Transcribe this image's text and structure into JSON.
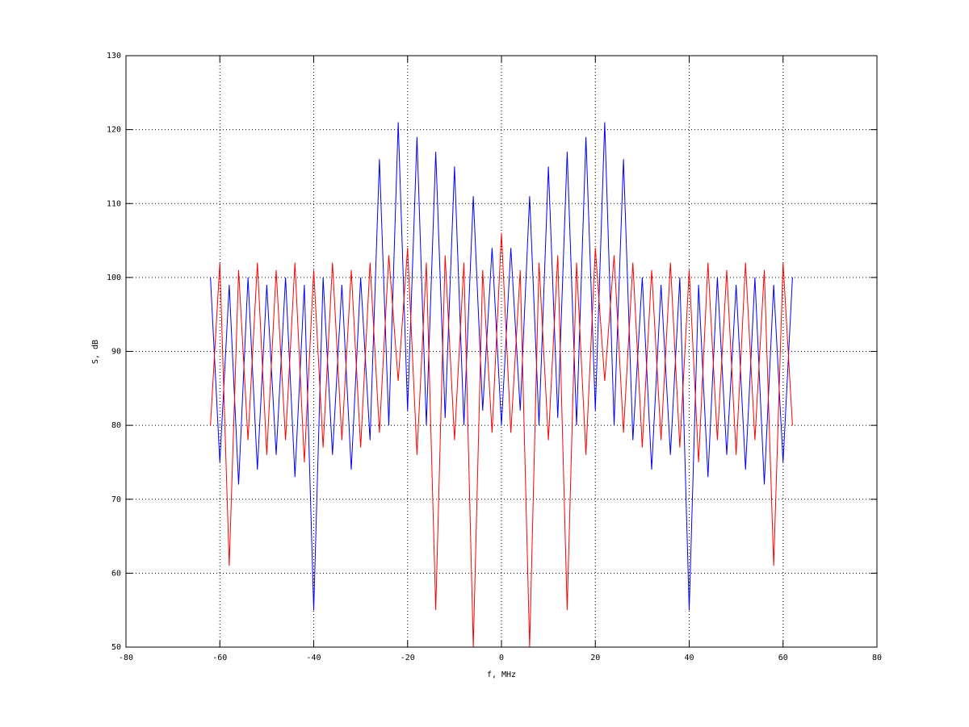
{
  "chart_data": {
    "type": "line",
    "xlabel": "f, MHz",
    "ylabel": "S, dB",
    "xlim": [
      -80,
      80
    ],
    "xticks": [
      -80,
      -60,
      -40,
      -20,
      0,
      20,
      40,
      60,
      80
    ],
    "ylim": [
      50,
      130
    ],
    "yticks": [
      50,
      60,
      70,
      80,
      90,
      100,
      110,
      120,
      130
    ],
    "grid": true,
    "x": [
      -62,
      -60,
      -58,
      -56,
      -54,
      -52,
      -50,
      -48,
      -46,
      -44,
      -42,
      -40,
      -38,
      -36,
      -34,
      -32,
      -30,
      -28,
      -26,
      -24,
      -22,
      -20,
      -18,
      -16,
      -14,
      -12,
      -10,
      -8,
      -6,
      -4,
      -2,
      0,
      2,
      4,
      6,
      8,
      10,
      12,
      14,
      16,
      18,
      20,
      22,
      24,
      26,
      28,
      30,
      32,
      34,
      36,
      38,
      40,
      42,
      44,
      46,
      48,
      50,
      52,
      54,
      56,
      58,
      60,
      62
    ],
    "series": [
      {
        "color": "#0000ff",
        "values": [
          100,
          75,
          99,
          72,
          100,
          74,
          99,
          76,
          100,
          73,
          99,
          55,
          100,
          76,
          99,
          74,
          100,
          78,
          116,
          80,
          121,
          82,
          119,
          80,
          117,
          81,
          115,
          80,
          111,
          82,
          104,
          80,
          104,
          82,
          111,
          80,
          115,
          81,
          117,
          80,
          119,
          82,
          121,
          80,
          116,
          78,
          100,
          74,
          99,
          76,
          100,
          55,
          99,
          73,
          100,
          76,
          99,
          74,
          100,
          72,
          99,
          75,
          100
        ]
      },
      {
        "color": "#ff0000",
        "values": [
          80,
          102,
          61,
          101,
          78,
          102,
          76,
          101,
          78,
          102,
          75,
          101,
          77,
          102,
          78,
          101,
          77,
          102,
          79,
          103,
          86,
          104,
          76,
          102,
          55,
          103,
          78,
          102,
          50,
          101,
          79,
          106,
          79,
          101,
          50,
          102,
          78,
          103,
          55,
          102,
          76,
          104,
          86,
          103,
          79,
          102,
          77,
          101,
          78,
          102,
          77,
          101,
          75,
          102,
          78,
          101,
          76,
          102,
          78,
          101,
          61,
          102,
          80
        ]
      }
    ]
  }
}
